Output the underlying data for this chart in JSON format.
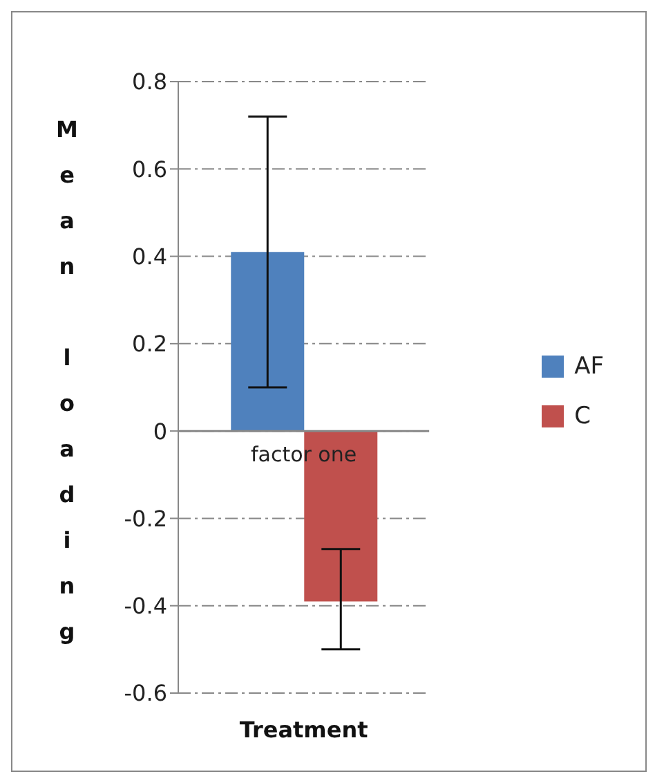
{
  "chart_data": {
    "type": "bar",
    "xlabel": "Treatment",
    "ylabel": "Mean loading",
    "categories": [
      "factor one"
    ],
    "series": [
      {
        "name": "AF",
        "color": "#4f81bd",
        "values": [
          0.41
        ],
        "errors": [
          [
            0.1,
            0.72
          ]
        ]
      },
      {
        "name": "C",
        "color": "#c0504d",
        "values": [
          -0.39
        ],
        "errors": [
          [
            -0.5,
            -0.27
          ]
        ]
      }
    ],
    "ylim": [
      -0.6,
      0.8
    ],
    "yticks": [
      -0.6,
      -0.4,
      -0.2,
      0,
      0.2,
      0.4,
      0.6,
      0.8
    ],
    "grid": "y",
    "legend": "right"
  }
}
